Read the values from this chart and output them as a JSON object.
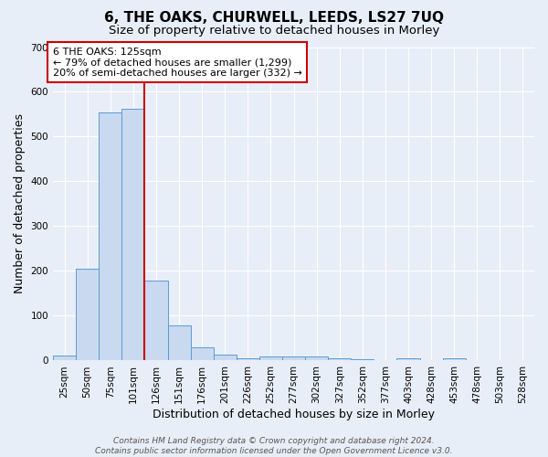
{
  "title": "6, THE OAKS, CHURWELL, LEEDS, LS27 7UQ",
  "subtitle": "Size of property relative to detached houses in Morley",
  "xlabel": "Distribution of detached houses by size in Morley",
  "ylabel": "Number of detached properties",
  "footer_line1": "Contains HM Land Registry data © Crown copyright and database right 2024.",
  "footer_line2": "Contains public sector information licensed under the Open Government Licence v3.0.",
  "categories": [
    "25sqm",
    "50sqm",
    "75sqm",
    "101sqm",
    "126sqm",
    "151sqm",
    "176sqm",
    "201sqm",
    "226sqm",
    "252sqm",
    "277sqm",
    "302sqm",
    "327sqm",
    "352sqm",
    "377sqm",
    "403sqm",
    "428sqm",
    "453sqm",
    "478sqm",
    "503sqm",
    "528sqm"
  ],
  "values": [
    11,
    205,
    554,
    563,
    178,
    79,
    29,
    13,
    5,
    10,
    10,
    9,
    6,
    3,
    0,
    5,
    0,
    6,
    0,
    0,
    0
  ],
  "bar_color": "#c9d9ef",
  "bar_edge_color": "#5b9bd5",
  "vline_x_index": 4,
  "vline_color": "#cc0000",
  "annotation_line1": "6 THE OAKS: 125sqm",
  "annotation_line2": "← 79% of detached houses are smaller (1,299)",
  "annotation_line3": "20% of semi-detached houses are larger (332) →",
  "annotation_box_color": "white",
  "annotation_box_edge_color": "#cc0000",
  "ylim": [
    0,
    700
  ],
  "yticks": [
    0,
    100,
    200,
    300,
    400,
    500,
    600,
    700
  ],
  "background_color": "#e8eef8",
  "grid_color": "#ffffff",
  "title_fontsize": 11,
  "subtitle_fontsize": 9.5,
  "axis_label_fontsize": 9,
  "tick_fontsize": 7.5,
  "footer_fontsize": 6.5
}
